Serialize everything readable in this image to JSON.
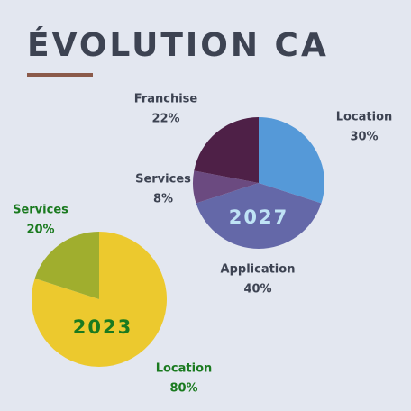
{
  "title": "ÉVOLUTION CA",
  "chart_data": [
    {
      "type": "pie",
      "label": "2023",
      "categories": [
        "Location",
        "Services"
      ],
      "values": [
        80,
        20
      ],
      "value_labels": [
        "80%",
        "20%"
      ],
      "colors": [
        "#ecc92e",
        "#a0ae2e"
      ],
      "text_color": "#1a7a1f",
      "label_color": "#1a7a1f"
    },
    {
      "type": "pie",
      "label": "2027",
      "categories": [
        "Location",
        "Application",
        "Services",
        "Franchise"
      ],
      "values": [
        30,
        40,
        8,
        22
      ],
      "value_labels": [
        "30%",
        "40%",
        "8%",
        "22%"
      ],
      "colors": [
        "#5599d8",
        "#6468a8",
        "#6b4a80",
        "#4e2047"
      ],
      "text_color": "#3d4352",
      "label_color": "#bfe3f5"
    }
  ]
}
